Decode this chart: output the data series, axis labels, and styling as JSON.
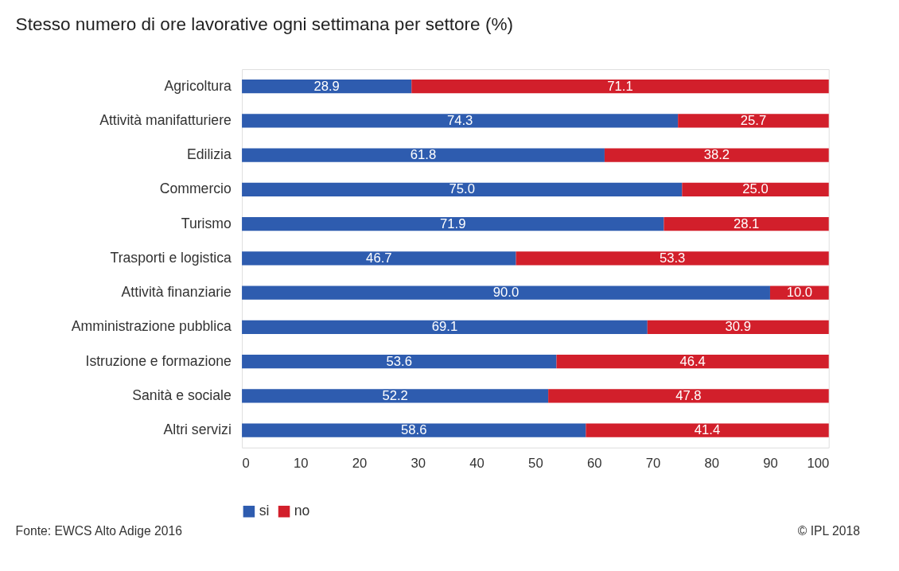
{
  "chart_data": {
    "type": "bar",
    "title": "Stesso numero di ore lavorative ogni settimana per settore (%)",
    "orientation": "horizontal",
    "stacked": true,
    "categories": [
      "Agricoltura",
      "Attività manifatturiere",
      "Edilizia",
      "Commercio",
      "Turismo",
      "Trasporti e logistica",
      "Attività finanziarie",
      "Amministrazione pubblica",
      "Istruzione e formazione",
      "Sanità e sociale",
      "Altri servizi"
    ],
    "series": [
      {
        "name": "si",
        "color": "#2e5caf",
        "values": [
          28.9,
          74.3,
          61.8,
          75.0,
          71.9,
          46.7,
          90.0,
          69.1,
          53.6,
          52.2,
          58.6
        ],
        "value_labels": [
          "28.9",
          "74.3",
          "61.8",
          "75.0",
          "71.9",
          "46.7",
          "90.0",
          "69.1",
          "53.6",
          "52.2",
          "58.6"
        ]
      },
      {
        "name": "no",
        "color": "#d21f2b",
        "values": [
          71.1,
          25.7,
          38.2,
          25.0,
          28.1,
          53.3,
          10.0,
          30.9,
          46.4,
          47.8,
          41.4
        ],
        "value_labels": [
          "71.1",
          "25.7",
          "38.2",
          "25.0",
          "28.1",
          "53.3",
          "10.0",
          "30.9",
          "46.4",
          "47.8",
          "41.4"
        ]
      }
    ],
    "xlim": [
      0,
      100
    ],
    "xticks": [
      0,
      10,
      20,
      30,
      40,
      50,
      60,
      70,
      80,
      90,
      100
    ],
    "grid": false,
    "legend": "bottom",
    "annotations": [
      "Fonte: EWCS Alto Adige 2016",
      "© IPL 2018"
    ]
  }
}
